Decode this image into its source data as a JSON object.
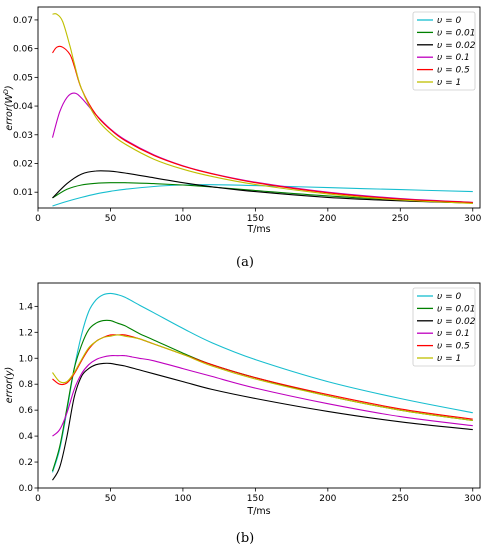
{
  "chart_data": [
    {
      "type": "line",
      "caption": "(a)",
      "xlabel": "T/ms",
      "ylabel": "error(W^D)",
      "xlim": [
        0,
        305
      ],
      "ylim": [
        0.0045,
        0.0745
      ],
      "xticks": [
        0,
        50,
        100,
        150,
        200,
        250,
        300
      ],
      "yticks": [
        0.01,
        0.02,
        0.03,
        0.04,
        0.05,
        0.06,
        0.07
      ],
      "grid": false,
      "legend": "top-right",
      "series": [
        {
          "name": "υ = 0",
          "color": "#17becf",
          "x": [
            10,
            20,
            30,
            40,
            50,
            60,
            80,
            100,
            120,
            150,
            200,
            250,
            300
          ],
          "y": [
            0.0052,
            0.0068,
            0.0082,
            0.0094,
            0.0103,
            0.011,
            0.012,
            0.0125,
            0.0126,
            0.0123,
            0.0116,
            0.0109,
            0.0102
          ]
        },
        {
          "name": "υ = 0.01",
          "color": "#008000",
          "x": [
            10,
            20,
            30,
            40,
            50,
            60,
            80,
            100,
            120,
            150,
            200,
            250,
            300
          ],
          "y": [
            0.008,
            0.011,
            0.0125,
            0.0131,
            0.0133,
            0.0133,
            0.013,
            0.0125,
            0.0118,
            0.0106,
            0.0087,
            0.0073,
            0.0062
          ]
        },
        {
          "name": "υ = 0.02",
          "color": "#000000",
          "x": [
            10,
            20,
            30,
            40,
            50,
            60,
            80,
            100,
            120,
            150,
            200,
            250,
            300
          ],
          "y": [
            0.008,
            0.013,
            0.0163,
            0.0174,
            0.0173,
            0.0167,
            0.015,
            0.0133,
            0.0119,
            0.0102,
            0.0082,
            0.007,
            0.0062
          ]
        },
        {
          "name": "υ = 0.1",
          "color": "#bf00bf",
          "x": [
            10,
            15,
            20,
            25,
            30,
            40,
            50,
            60,
            80,
            100,
            120,
            150,
            200,
            250,
            300
          ],
          "y": [
            0.029,
            0.038,
            0.043,
            0.0445,
            0.0428,
            0.037,
            0.032,
            0.0283,
            0.023,
            0.0192,
            0.0165,
            0.0135,
            0.01,
            0.0078,
            0.0065
          ]
        },
        {
          "name": "υ = 0.5",
          "color": "#ff0000",
          "x": [
            10,
            13,
            17,
            22,
            25,
            30,
            40,
            50,
            60,
            80,
            100,
            120,
            150,
            200,
            250,
            300
          ],
          "y": [
            0.0585,
            0.0605,
            0.0605,
            0.058,
            0.054,
            0.046,
            0.037,
            0.0318,
            0.028,
            0.0228,
            0.0191,
            0.0164,
            0.0133,
            0.0098,
            0.0076,
            0.0064
          ]
        },
        {
          "name": "υ = 1",
          "color": "#bfbf00",
          "x": [
            10,
            13,
            17,
            22,
            25,
            30,
            40,
            50,
            60,
            80,
            100,
            120,
            150,
            200,
            250,
            300
          ],
          "y": [
            0.072,
            0.072,
            0.0695,
            0.061,
            0.055,
            0.046,
            0.036,
            0.0305,
            0.0268,
            0.0215,
            0.018,
            0.0155,
            0.0127,
            0.0094,
            0.0073,
            0.0061
          ]
        }
      ]
    },
    {
      "type": "line",
      "caption": "(b)",
      "xlabel": "T/ms",
      "ylabel": "error(y)",
      "xlim": [
        0,
        305
      ],
      "ylim": [
        0,
        1.58
      ],
      "xticks": [
        0,
        50,
        100,
        150,
        200,
        250,
        300
      ],
      "yticks": [
        0.0,
        0.2,
        0.4,
        0.6,
        0.8,
        1.0,
        1.2,
        1.4
      ],
      "grid": false,
      "legend": "top-right",
      "series": [
        {
          "name": "υ = 0",
          "color": "#17becf",
          "x": [
            10,
            15,
            20,
            25,
            30,
            35,
            40,
            45,
            50,
            55,
            60,
            70,
            80,
            100,
            120,
            150,
            200,
            250,
            300
          ],
          "y": [
            0.12,
            0.3,
            0.6,
            0.92,
            1.18,
            1.36,
            1.45,
            1.49,
            1.5,
            1.49,
            1.47,
            1.41,
            1.35,
            1.23,
            1.12,
            0.99,
            0.82,
            0.69,
            0.58
          ]
        },
        {
          "name": "υ = 0.01",
          "color": "#008000",
          "x": [
            10,
            15,
            20,
            25,
            30,
            35,
            40,
            45,
            50,
            55,
            60,
            70,
            80,
            100,
            120,
            150,
            200,
            250,
            300
          ],
          "y": [
            0.13,
            0.32,
            0.62,
            0.92,
            1.1,
            1.22,
            1.27,
            1.29,
            1.29,
            1.27,
            1.25,
            1.19,
            1.14,
            1.04,
            0.95,
            0.85,
            0.71,
            0.6,
            0.52
          ]
        },
        {
          "name": "υ = 0.02",
          "color": "#000000",
          "x": [
            10,
            15,
            20,
            25,
            30,
            35,
            40,
            45,
            50,
            55,
            60,
            70,
            80,
            100,
            120,
            150,
            200,
            250,
            300
          ],
          "y": [
            0.06,
            0.16,
            0.4,
            0.7,
            0.86,
            0.92,
            0.95,
            0.96,
            0.96,
            0.95,
            0.94,
            0.91,
            0.88,
            0.82,
            0.76,
            0.69,
            0.59,
            0.51,
            0.45
          ]
        },
        {
          "name": "υ = 0.1",
          "color": "#bf00bf",
          "x": [
            10,
            15,
            20,
            25,
            30,
            35,
            40,
            45,
            50,
            55,
            60,
            65,
            70,
            80,
            100,
            120,
            150,
            200,
            250,
            300
          ],
          "y": [
            0.4,
            0.45,
            0.58,
            0.76,
            0.88,
            0.95,
            0.99,
            1.01,
            1.02,
            1.02,
            1.02,
            1.01,
            1.0,
            0.98,
            0.92,
            0.86,
            0.77,
            0.65,
            0.55,
            0.48
          ]
        },
        {
          "name": "υ = 0.5",
          "color": "#ff0000",
          "x": [
            10,
            15,
            20,
            25,
            30,
            35,
            40,
            45,
            50,
            55,
            60,
            70,
            80,
            100,
            120,
            150,
            200,
            250,
            300
          ],
          "y": [
            0.84,
            0.8,
            0.81,
            0.88,
            0.98,
            1.07,
            1.13,
            1.16,
            1.18,
            1.18,
            1.18,
            1.15,
            1.11,
            1.03,
            0.95,
            0.85,
            0.72,
            0.61,
            0.53
          ]
        },
        {
          "name": "υ = 1",
          "color": "#bfbf00",
          "x": [
            10,
            15,
            20,
            25,
            30,
            35,
            40,
            45,
            50,
            55,
            60,
            70,
            80,
            100,
            120,
            150,
            200,
            250,
            300
          ],
          "y": [
            0.89,
            0.82,
            0.82,
            0.89,
            0.99,
            1.08,
            1.13,
            1.16,
            1.17,
            1.18,
            1.17,
            1.15,
            1.11,
            1.03,
            0.94,
            0.84,
            0.71,
            0.6,
            0.52
          ]
        }
      ]
    }
  ]
}
